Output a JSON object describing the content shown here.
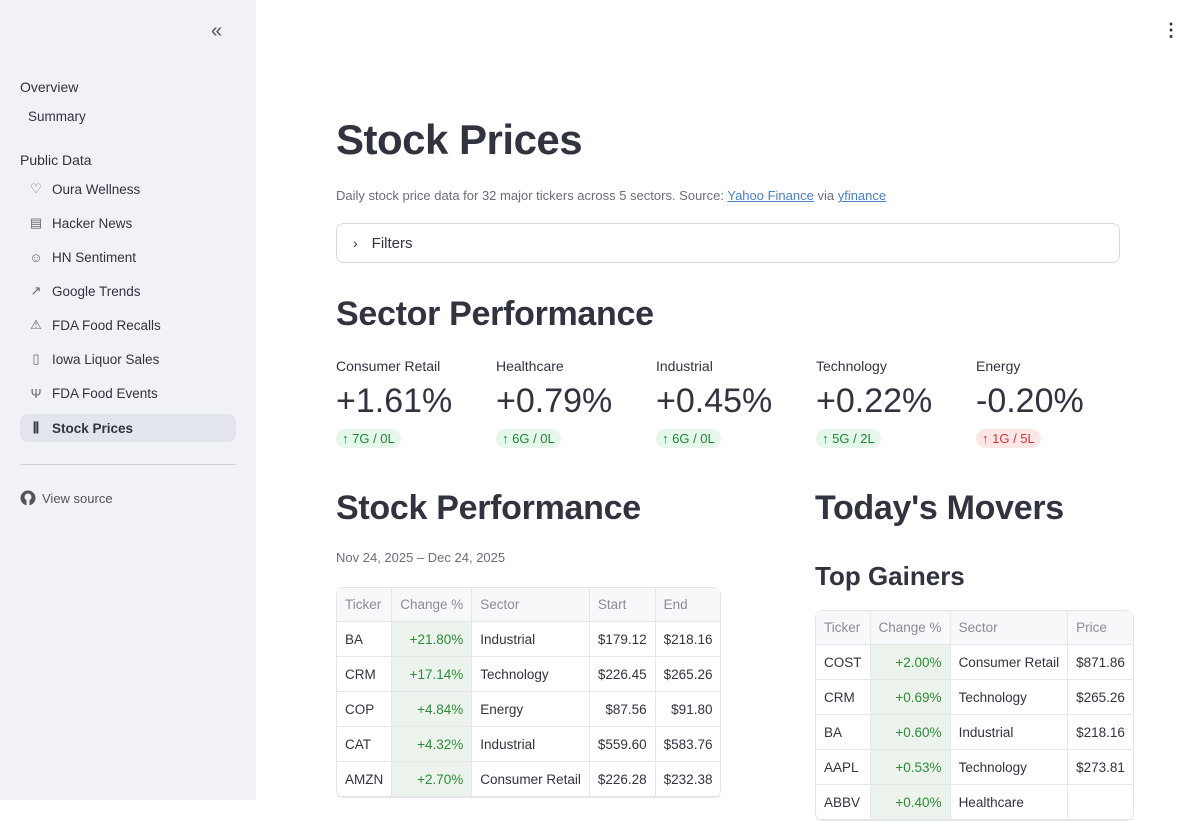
{
  "sidebar": {
    "collapse_icon": "double-chevron-left",
    "sections": [
      {
        "title": "Overview",
        "items": [
          {
            "label": "Summary",
            "icon": ""
          }
        ]
      },
      {
        "title": "Public Data",
        "items": [
          {
            "label": "Oura Wellness",
            "icon": "heart"
          },
          {
            "label": "Hacker News",
            "icon": "table"
          },
          {
            "label": "HN Sentiment",
            "icon": "smiley"
          },
          {
            "label": "Google Trends",
            "icon": "trending-up"
          },
          {
            "label": "FDA Food Recalls",
            "icon": "warning"
          },
          {
            "label": "Iowa Liquor Sales",
            "icon": "bottles"
          },
          {
            "label": "FDA Food Events",
            "icon": "utensils"
          },
          {
            "label": "Stock Prices",
            "icon": "candlestick",
            "active": true
          }
        ]
      }
    ],
    "view_source": "View source"
  },
  "page": {
    "title": "Stock Prices",
    "caption_prefix": "Daily stock price data for 32 major tickers across 5 sectors. Source: ",
    "caption_link1": "Yahoo Finance",
    "caption_mid": " via ",
    "caption_link2": "yfinance",
    "filters_label": "Filters"
  },
  "sector_performance": {
    "title": "Sector Performance",
    "metrics": [
      {
        "label": "Consumer Retail",
        "value": "+1.61%",
        "delta": "7G / 0L",
        "direction": "up"
      },
      {
        "label": "Healthcare",
        "value": "+0.79%",
        "delta": "6G / 0L",
        "direction": "up"
      },
      {
        "label": "Industrial",
        "value": "+0.45%",
        "delta": "6G / 0L",
        "direction": "up"
      },
      {
        "label": "Technology",
        "value": "+0.22%",
        "delta": "5G / 2L",
        "direction": "up"
      },
      {
        "label": "Energy",
        "value": "-0.20%",
        "delta": "1G / 5L",
        "direction": "down"
      }
    ],
    "colors": {
      "up": "#21853a",
      "down": "#d2383a"
    }
  },
  "stock_performance": {
    "title": "Stock Performance",
    "date_range": "Nov 24, 2025 – Dec 24, 2025",
    "columns": [
      "Ticker",
      "Change %",
      "Sector",
      "Start",
      "End"
    ],
    "rows": [
      [
        "BA",
        "+21.80%",
        "Industrial",
        "$179.12",
        "$218.16"
      ],
      [
        "CRM",
        "+17.14%",
        "Technology",
        "$226.45",
        "$265.26"
      ],
      [
        "COP",
        "+4.84%",
        "Energy",
        "$87.56",
        "$91.80"
      ],
      [
        "CAT",
        "+4.32%",
        "Industrial",
        "$559.60",
        "$583.76"
      ],
      [
        "AMZN",
        "+2.70%",
        "Consumer Retail",
        "$226.28",
        "$232.38"
      ]
    ]
  },
  "movers": {
    "title": "Today's Movers",
    "top_gainers_title": "Top Gainers",
    "columns": [
      "Ticker",
      "Change %",
      "Sector",
      "Price"
    ],
    "rows": [
      [
        "COST",
        "+2.00%",
        "Consumer Retail",
        "$871.86"
      ],
      [
        "CRM",
        "+0.69%",
        "Technology",
        "$265.26"
      ],
      [
        "BA",
        "+0.60%",
        "Industrial",
        "$218.16"
      ],
      [
        "AAPL",
        "+0.53%",
        "Technology",
        "$273.81"
      ],
      [
        "ABBV",
        "+0.40%",
        "Healthcare",
        ""
      ]
    ]
  }
}
